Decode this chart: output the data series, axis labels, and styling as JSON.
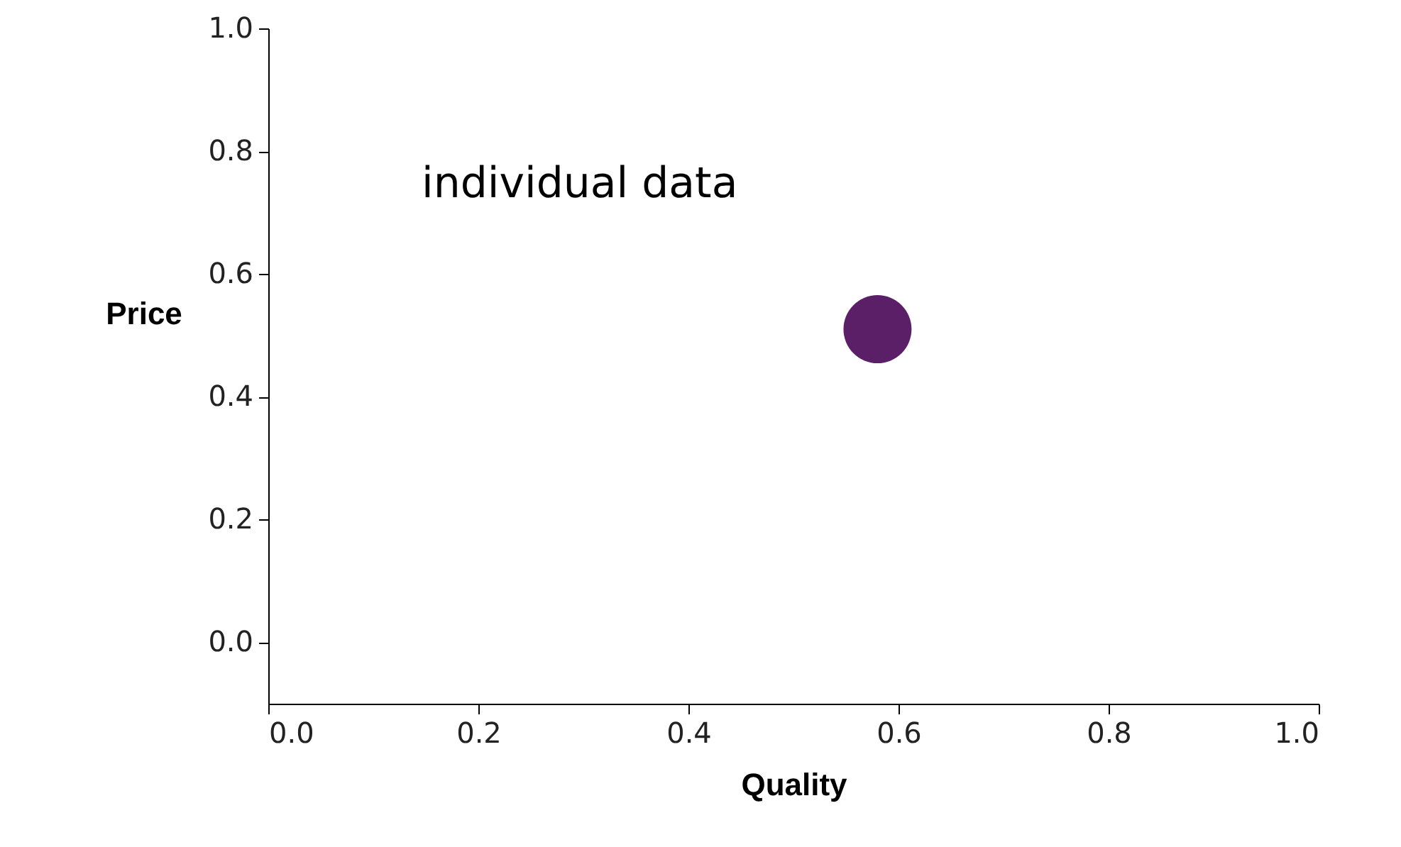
{
  "chart_data": {
    "type": "scatter",
    "xlabel": "Quality",
    "ylabel": "Price",
    "x": [
      0.58
    ],
    "values": [
      0.51
    ],
    "color": "#5b1f68",
    "marker": "circle",
    "xlim": [
      0.0,
      1.0
    ],
    "ylim": [
      -0.1,
      1.0
    ],
    "xticks": [
      {
        "value": 0,
        "label": "0.0"
      },
      {
        "value": 0.2,
        "label": "0.2"
      },
      {
        "value": 0.4,
        "label": "0.4"
      },
      {
        "value": 0.6,
        "label": "0.6"
      },
      {
        "value": 0.8,
        "label": "0.8"
      },
      {
        "value": 1,
        "label": "1.0"
      }
    ],
    "yticks": [
      {
        "value": 0,
        "label": "0.0"
      },
      {
        "value": 0.2,
        "label": "0.2"
      },
      {
        "value": 0.4,
        "label": "0.4"
      },
      {
        "value": 0.6,
        "label": "0.6"
      },
      {
        "value": 0.8,
        "label": "0.8"
      },
      {
        "value": 1,
        "label": "1.0"
      }
    ],
    "annotations": [
      "individual data"
    ],
    "grid": false
  }
}
